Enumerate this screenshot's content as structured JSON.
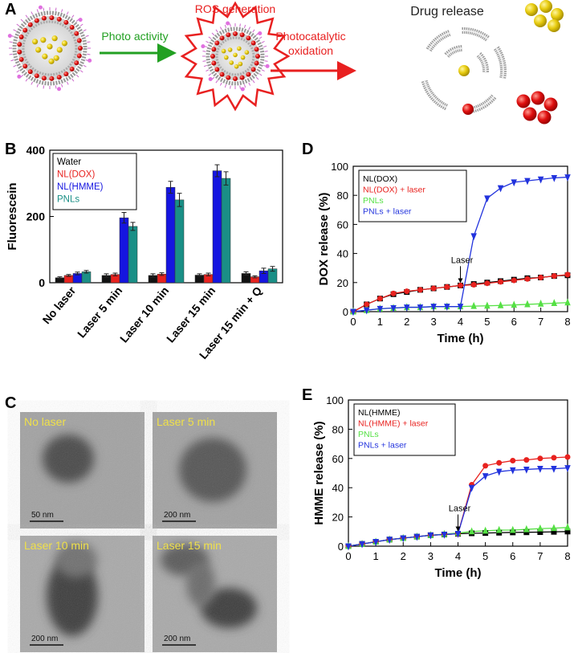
{
  "scheme": {
    "panel": "A",
    "arrow1": "Photo activity",
    "title2": "ROS generation",
    "arrow2": [
      "Photocatalytic",
      "oxidation"
    ],
    "title3": "Drug release"
  },
  "micrographs": {
    "panel": "C",
    "images": [
      {
        "label": "No laser",
        "scale": "50 nm"
      },
      {
        "label": "Laser 5 min",
        "scale": "200 nm"
      },
      {
        "label": "Laser 10 min",
        "scale": "200 nm"
      },
      {
        "label": "Laser 15 min",
        "scale": "200 nm"
      }
    ]
  },
  "chart_data": [
    {
      "type": "bar",
      "panel": "B",
      "ylabel": "Fluorescein",
      "categories": [
        "No laser",
        "Laser 5 min",
        "Laser 10 min",
        "Laser 15 min",
        "Laser 15 min + Q"
      ],
      "series": [
        {
          "name": "Water",
          "color": "#111111",
          "values": [
            15,
            22,
            22,
            23,
            28
          ],
          "errors": [
            3,
            5,
            5,
            4,
            5
          ]
        },
        {
          "name": "NL(DOX)",
          "color": "#e8221f",
          "values": [
            22,
            25,
            26,
            25,
            18
          ],
          "errors": [
            3,
            4,
            4,
            4,
            3
          ]
        },
        {
          "name": "NL(HMME)",
          "color": "#1515e0",
          "values": [
            28,
            196,
            288,
            338,
            36
          ],
          "errors": [
            4,
            16,
            18,
            18,
            8
          ]
        },
        {
          "name": "PNLs",
          "color": "#1a8f86",
          "values": [
            33,
            170,
            250,
            315,
            42
          ],
          "errors": [
            4,
            12,
            20,
            20,
            7
          ]
        }
      ],
      "ylim": [
        0,
        400
      ],
      "yticks": [
        0,
        200,
        400
      ],
      "legend": "upper left"
    },
    {
      "type": "line",
      "panel": "D",
      "xlabel": "Time (h)",
      "ylabel": "DOX release (%)",
      "x": [
        0,
        0.5,
        1,
        1.5,
        2,
        2.5,
        3,
        3.5,
        4,
        4.5,
        5,
        5.5,
        6,
        6.5,
        7,
        7.5,
        8
      ],
      "series": [
        {
          "name": "NL(DOX)",
          "color": "#000000",
          "marker": "s",
          "values": [
            0,
            5,
            9,
            12,
            13.5,
            15,
            16,
            17,
            18,
            19,
            20,
            21,
            22,
            23,
            23.5,
            24.5,
            25
          ]
        },
        {
          "name": "NL(DOX) + laser",
          "color": "#e8221f",
          "marker": "o",
          "values": [
            0,
            5,
            9,
            12.5,
            14,
            15,
            16,
            17,
            18,
            18.5,
            19.5,
            20.5,
            21.5,
            22.5,
            23.5,
            24.5,
            25.5
          ]
        },
        {
          "name": "PNLs",
          "color": "#55e044",
          "marker": "^",
          "values": [
            0,
            1,
            2,
            2.5,
            3,
            3,
            3.5,
            3.5,
            3.5,
            3.8,
            4,
            4.3,
            4.6,
            5,
            5.4,
            5.8,
            6.2
          ]
        },
        {
          "name": "PNLs + laser",
          "color": "#2233dd",
          "marker": "v",
          "values": [
            0,
            1,
            2,
            2.5,
            3,
            3,
            3.5,
            3.5,
            3.5,
            52,
            78,
            85,
            89,
            90,
            91,
            92,
            92.5
          ]
        }
      ],
      "xlim": [
        0,
        8
      ],
      "xticks": [
        0,
        1,
        2,
        3,
        4,
        5,
        6,
        7,
        8
      ],
      "ylim": [
        0,
        100
      ],
      "yticks": [
        0,
        20,
        40,
        60,
        80,
        100
      ],
      "annotations": [
        {
          "text": "Laser",
          "x": 4
        }
      ],
      "legend": "upper left"
    },
    {
      "type": "line",
      "panel": "E",
      "xlabel": "Time (h)",
      "ylabel": "HMME release (%)",
      "x": [
        0,
        0.5,
        1,
        1.5,
        2,
        2.5,
        3,
        3.5,
        4,
        4.5,
        5,
        5.5,
        6,
        6.5,
        7,
        7.5,
        8
      ],
      "series": [
        {
          "name": "NL(HMME)",
          "color": "#000000",
          "marker": "s",
          "values": [
            0,
            1.5,
            3,
            4.5,
            5.5,
            6.5,
            7.5,
            8,
            8.5,
            8.8,
            9,
            9.2,
            9.4,
            9.5,
            9.6,
            9.8,
            10
          ]
        },
        {
          "name": "NL(HMME) + laser",
          "color": "#e8221f",
          "marker": "o",
          "values": [
            0,
            1.5,
            3,
            4.5,
            5.5,
            6.5,
            7.5,
            8,
            8.5,
            42,
            55,
            57,
            58.5,
            59,
            60,
            60.5,
            61
          ]
        },
        {
          "name": "PNLs",
          "color": "#55e044",
          "marker": "^",
          "values": [
            0,
            1.5,
            3,
            4.5,
            5.5,
            6.5,
            7.5,
            8.2,
            9,
            10,
            10.5,
            11,
            11,
            11.5,
            12,
            12.3,
            12.8
          ]
        },
        {
          "name": "PNLs + laser",
          "color": "#2233dd",
          "marker": "v",
          "values": [
            0,
            1.5,
            3,
            4.5,
            5.5,
            6.5,
            7.5,
            8,
            8.5,
            40,
            48,
            51,
            52,
            52.5,
            53,
            53,
            53.5
          ]
        }
      ],
      "xlim": [
        0,
        8
      ],
      "xticks": [
        0,
        1,
        2,
        3,
        4,
        5,
        6,
        7,
        8
      ],
      "ylim": [
        0,
        100
      ],
      "yticks": [
        0,
        20,
        40,
        60,
        80,
        100
      ],
      "annotations": [
        {
          "text": "Laser",
          "x": 4
        }
      ],
      "legend": "upper left"
    }
  ]
}
